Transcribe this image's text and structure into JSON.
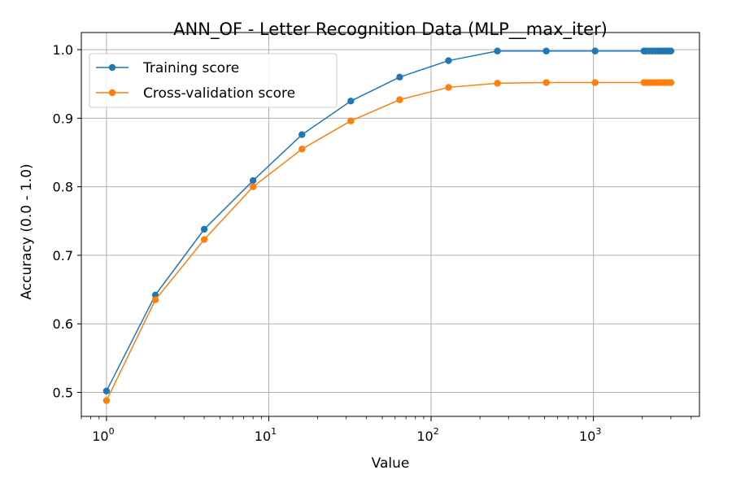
{
  "chart_data": {
    "type": "line",
    "title": "ANN_OF - Letter Recognition Data (MLP__max_iter)",
    "xlabel": "Value",
    "ylabel": "Accuracy (0.0 - 1.0)",
    "xscale": "log",
    "xlim": [
      0.7,
      4500
    ],
    "ylim": [
      0.465,
      1.025
    ],
    "grid": true,
    "legend_position": "top-left",
    "x_ticks": [
      {
        "value": 1,
        "base": "10",
        "exp": "0"
      },
      {
        "value": 10,
        "base": "10",
        "exp": "1"
      },
      {
        "value": 100,
        "base": "10",
        "exp": "2"
      },
      {
        "value": 1000,
        "base": "10",
        "exp": "3"
      }
    ],
    "y_ticks": [
      0.5,
      0.6,
      0.7,
      0.8,
      0.9,
      1.0
    ],
    "y_tick_labels": [
      "0.5",
      "0.6",
      "0.7",
      "0.8",
      "0.9",
      "1.0"
    ],
    "x": [
      1,
      2,
      4,
      8,
      16,
      32,
      64,
      128,
      256,
      512,
      1024,
      2048,
      2100,
      2200,
      2300,
      2400,
      2500,
      2600,
      2700,
      2800,
      2900,
      3000
    ],
    "series": [
      {
        "name": "Training score",
        "color": "#1f77b4",
        "values": [
          0.502,
          0.642,
          0.738,
          0.809,
          0.876,
          0.925,
          0.96,
          0.984,
          0.998,
          0.998,
          0.998,
          0.998,
          0.998,
          0.998,
          0.998,
          0.998,
          0.998,
          0.998,
          0.998,
          0.998,
          0.998,
          0.998
        ]
      },
      {
        "name": "Cross-validation score",
        "color": "#ff7f0e",
        "values": [
          0.488,
          0.635,
          0.723,
          0.8,
          0.855,
          0.896,
          0.927,
          0.945,
          0.951,
          0.952,
          0.952,
          0.952,
          0.952,
          0.952,
          0.952,
          0.952,
          0.952,
          0.952,
          0.952,
          0.952,
          0.952,
          0.952
        ]
      }
    ]
  }
}
